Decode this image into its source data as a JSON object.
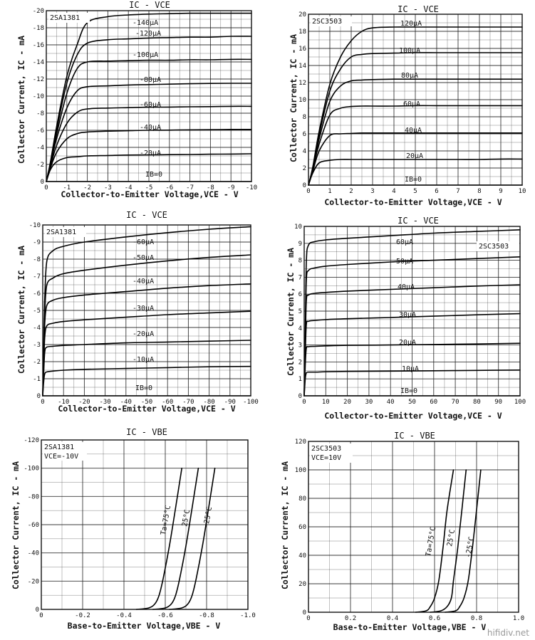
{
  "page": {
    "watermark": "hifidiv.net"
  },
  "chart_data": [
    {
      "type": "line",
      "title": "IC - VCE",
      "device": "2SA1381",
      "xlabel": "Collector-to-Emitter Voltage,VCE - V",
      "ylabel": "Collector Current, IC - mA",
      "xlim": [
        0,
        -10
      ],
      "ylim": [
        0,
        -20
      ],
      "x_ticks": [
        "0",
        "-1",
        "-2",
        "-3",
        "-4",
        "-5",
        "-6",
        "-7",
        "-8",
        "-9",
        "-10"
      ],
      "y_ticks": [
        "0",
        "-2",
        "-4",
        "-6",
        "-8",
        "-10",
        "-12",
        "-14",
        "-16",
        "-18",
        "-20"
      ],
      "grid": true,
      "x": [
        0,
        -0.2,
        -0.5,
        -1,
        -1.5,
        -2,
        -3,
        -4,
        -5,
        -6,
        -7,
        -8,
        -9,
        -10
      ],
      "series": [
        {
          "name": "IB=0",
          "values": [
            0,
            0,
            0,
            0,
            0,
            0,
            0,
            0,
            0,
            0,
            0,
            0,
            0,
            0
          ]
        },
        {
          "name": "-20μA",
          "values": [
            0,
            -1.4,
            -2.3,
            -2.8,
            -2.9,
            -3.0,
            -3.05,
            -3.1,
            -3.12,
            -3.15,
            -3.17,
            -3.2,
            -3.22,
            -3.25
          ]
        },
        {
          "name": "-40μA",
          "values": [
            0,
            -1.6,
            -3.4,
            -5.0,
            -5.6,
            -5.8,
            -5.9,
            -5.95,
            -6.0,
            -6.02,
            -6.05,
            -6.07,
            -6.1,
            -6.1
          ]
        },
        {
          "name": "-60μA",
          "values": [
            0,
            -1.8,
            -4.2,
            -6.8,
            -8.1,
            -8.5,
            -8.6,
            -8.65,
            -8.7,
            -8.72,
            -8.75,
            -8.77,
            -8.8,
            -8.8
          ]
        },
        {
          "name": "-80μA",
          "values": [
            0,
            -2.0,
            -5.0,
            -8.6,
            -10.6,
            -11.1,
            -11.2,
            -11.3,
            -11.35,
            -11.4,
            -11.45,
            -11.48,
            -11.5,
            -11.5
          ]
        },
        {
          "name": "-100μA",
          "values": [
            0,
            -2.1,
            -5.5,
            -10.3,
            -13.2,
            -14.0,
            -14.1,
            -14.15,
            -14.2,
            -14.2,
            -14.25,
            -14.25,
            -14.3,
            -14.3
          ]
        },
        {
          "name": "-120μA",
          "values": [
            0,
            -2.2,
            -6.0,
            -11.5,
            -14.8,
            -16.2,
            -16.6,
            -16.7,
            -16.8,
            -16.85,
            -16.9,
            -16.9,
            -17.0,
            -17.0
          ]
        },
        {
          "name": "-140μA",
          "values": [
            0,
            -2.3,
            -6.4,
            -12.3,
            -16.0,
            -18.6,
            -19.3,
            -19.5,
            -19.6,
            -19.65,
            -19.7,
            -19.7,
            -19.7,
            -19.7
          ]
        }
      ],
      "annotations": [
        "-140μA",
        "-120μA",
        "-100μA",
        "-80μA",
        "-60μA",
        "-40μA",
        "-20μA",
        "IB=0"
      ]
    },
    {
      "type": "line",
      "title": "IC - VCE",
      "device": "2SC3503",
      "xlabel": "Collector-to-Emitter Voltage,VCE - V",
      "ylabel": "Collector Current, IC - mA",
      "xlim": [
        0,
        10
      ],
      "ylim": [
        0,
        20
      ],
      "x_ticks": [
        "0",
        "1",
        "2",
        "3",
        "4",
        "5",
        "6",
        "7",
        "8",
        "9",
        "10"
      ],
      "y_ticks": [
        "0",
        "2",
        "4",
        "6",
        "8",
        "10",
        "12",
        "14",
        "16",
        "18",
        "20"
      ],
      "grid": true,
      "x": [
        0,
        0.2,
        0.5,
        1,
        1.5,
        2,
        2.5,
        3,
        4,
        5,
        6,
        7,
        8,
        9,
        10
      ],
      "series": [
        {
          "name": "IB=0",
          "values": [
            0,
            0,
            0,
            0,
            0,
            0,
            0,
            0,
            0,
            0,
            0,
            0,
            0,
            0,
            0
          ]
        },
        {
          "name": "20μA",
          "values": [
            0,
            1.4,
            2.6,
            2.9,
            3.0,
            3.0,
            3.0,
            3.0,
            3.0,
            3.0,
            3.0,
            3.0,
            3.0,
            3.05,
            3.05
          ]
        },
        {
          "name": "40μA",
          "values": [
            0,
            1.6,
            4.0,
            5.8,
            6.0,
            6.05,
            6.1,
            6.1,
            6.1,
            6.1,
            6.1,
            6.1,
            6.1,
            6.1,
            6.1
          ]
        },
        {
          "name": "60μA",
          "values": [
            0,
            1.8,
            4.8,
            8.2,
            9.0,
            9.2,
            9.25,
            9.25,
            9.25,
            9.3,
            9.3,
            9.3,
            9.3,
            9.3,
            9.3
          ]
        },
        {
          "name": "80μA",
          "values": [
            0,
            1.9,
            5.4,
            9.8,
            11.6,
            12.2,
            12.3,
            12.35,
            12.4,
            12.4,
            12.4,
            12.4,
            12.4,
            12.4,
            12.4
          ]
        },
        {
          "name": "100μA",
          "values": [
            0,
            2.0,
            5.9,
            11.0,
            13.6,
            15.0,
            15.3,
            15.4,
            15.45,
            15.5,
            15.5,
            15.5,
            15.5,
            15.5,
            15.5
          ]
        },
        {
          "name": "120μA",
          "values": [
            0,
            2.1,
            6.3,
            11.8,
            15.0,
            16.9,
            18.0,
            18.4,
            18.5,
            18.5,
            18.5,
            18.5,
            18.5,
            18.5,
            18.5
          ]
        }
      ],
      "annotations": [
        "120μA",
        "100μA",
        "80μA",
        "60μA",
        "40μA",
        "20μA",
        "IB=0"
      ]
    },
    {
      "type": "line",
      "title": "IC - VCE",
      "device": "2SA1381",
      "xlabel": "Collector-to-Emitter Voltage,VCE - V",
      "ylabel": "Collector Current, IC - mA",
      "xlim": [
        0,
        -100
      ],
      "ylim": [
        0,
        -10
      ],
      "x_ticks": [
        "0",
        "-10",
        "-20",
        "-30",
        "-40",
        "-50",
        "-60",
        "-70",
        "-80",
        "-90",
        "-100"
      ],
      "y_ticks": [
        "0",
        "-1",
        "-2",
        "-3",
        "-4",
        "-5",
        "-6",
        "-7",
        "-8",
        "-9",
        "-10"
      ],
      "grid": true,
      "x": [
        0,
        -0.5,
        -1,
        -2,
        -5,
        -10,
        -20,
        -40,
        -60,
        -80,
        -100
      ],
      "series": [
        {
          "name": "IB=0",
          "values": [
            0,
            0,
            0,
            0,
            0,
            0,
            0,
            0,
            0,
            0,
            0
          ]
        },
        {
          "name": "-10μA",
          "values": [
            0,
            -0.9,
            -1.3,
            -1.4,
            -1.45,
            -1.5,
            -1.55,
            -1.6,
            -1.65,
            -1.7,
            -1.72
          ]
        },
        {
          "name": "-20μA",
          "values": [
            0,
            -1.5,
            -2.6,
            -2.85,
            -2.9,
            -2.95,
            -3.0,
            -3.1,
            -3.15,
            -3.2,
            -3.25
          ]
        },
        {
          "name": "-30μA",
          "values": [
            0,
            -2.0,
            -3.5,
            -4.1,
            -4.25,
            -4.35,
            -4.45,
            -4.6,
            -4.75,
            -4.85,
            -4.95
          ]
        },
        {
          "name": "-40μA",
          "values": [
            0,
            -2.4,
            -4.3,
            -5.3,
            -5.6,
            -5.75,
            -5.9,
            -6.1,
            -6.3,
            -6.45,
            -6.55
          ]
        },
        {
          "name": "-50μA",
          "values": [
            0,
            -2.8,
            -5.0,
            -6.5,
            -6.9,
            -7.15,
            -7.35,
            -7.65,
            -7.9,
            -8.1,
            -8.25
          ]
        },
        {
          "name": "-60μA",
          "values": [
            0,
            -3.2,
            -5.8,
            -7.9,
            -8.5,
            -8.75,
            -9.0,
            -9.3,
            -9.55,
            -9.75,
            -9.9
          ]
        }
      ],
      "annotations": [
        "-60μA",
        "-50μA",
        "-40μA",
        "-30μA",
        "-20μA",
        "-10μA",
        "IB=0"
      ]
    },
    {
      "type": "line",
      "title": "IC - VCE",
      "device": "2SC3503",
      "xlabel": "Collector-to-Emitter Voltage,VCE - V",
      "ylabel": "Collector Current, IC - mA",
      "xlim": [
        0,
        100
      ],
      "ylim": [
        0,
        10
      ],
      "x_ticks": [
        "0",
        "10",
        "20",
        "30",
        "40",
        "50",
        "60",
        "70",
        "80",
        "90",
        "100"
      ],
      "y_ticks": [
        "0",
        "1",
        "2",
        "3",
        "4",
        "5",
        "6",
        "7",
        "8",
        "9",
        "10"
      ],
      "grid": true,
      "x": [
        0,
        0.5,
        1,
        2,
        5,
        10,
        20,
        40,
        60,
        80,
        100
      ],
      "series": [
        {
          "name": "IB=0",
          "values": [
            0,
            0,
            0,
            0,
            0,
            0,
            0,
            0,
            0,
            0,
            0
          ]
        },
        {
          "name": "10μA",
          "values": [
            0,
            1.0,
            1.35,
            1.4,
            1.4,
            1.42,
            1.44,
            1.46,
            1.48,
            1.5,
            1.52
          ]
        },
        {
          "name": "20μA",
          "values": [
            0,
            1.8,
            2.8,
            2.9,
            2.92,
            2.95,
            2.98,
            3.0,
            3.03,
            3.06,
            3.1
          ]
        },
        {
          "name": "30μA",
          "values": [
            0,
            2.4,
            4.2,
            4.4,
            4.45,
            4.5,
            4.55,
            4.62,
            4.7,
            4.78,
            4.85
          ]
        },
        {
          "name": "40μA",
          "values": [
            0,
            2.9,
            5.6,
            5.95,
            6.05,
            6.1,
            6.18,
            6.28,
            6.38,
            6.48,
            6.55
          ]
        },
        {
          "name": "50μA",
          "values": [
            0,
            3.3,
            6.8,
            7.4,
            7.55,
            7.65,
            7.75,
            7.9,
            8.0,
            8.1,
            8.2
          ]
        },
        {
          "name": "60μA",
          "values": [
            0,
            3.7,
            7.9,
            8.9,
            9.1,
            9.2,
            9.3,
            9.45,
            9.6,
            9.7,
            9.8
          ]
        }
      ],
      "annotations": [
        "60μA",
        "50μA",
        "40μA",
        "30μA",
        "20μA",
        "10μA",
        "IB=0"
      ]
    },
    {
      "type": "line",
      "title": "IC - VBE",
      "device": "2SA1381",
      "condition": "VCE=-10V",
      "xlabel": "Base-to-Emitter Voltage,VBE - V",
      "ylabel": "Collector Current, IC - mA",
      "xlim": [
        0,
        -1.0
      ],
      "ylim": [
        0,
        -120
      ],
      "x_ticks": [
        "0",
        "-0.2",
        "-0.4",
        "-0.6",
        "-0.8",
        "-1.0"
      ],
      "y_ticks": [
        "0",
        "-20",
        "-40",
        "-60",
        "-80",
        "-100",
        "-120"
      ],
      "grid": true,
      "series": [
        {
          "name": "Ta=75°C",
          "x": [
            -0.46,
            -0.52,
            -0.55,
            -0.57,
            -0.59,
            -0.62,
            -0.65,
            -0.68
          ],
          "values": [
            0,
            -1,
            -4,
            -10,
            -22,
            -45,
            -72,
            -100
          ]
        },
        {
          "name": "25°C",
          "x": [
            -0.54,
            -0.6,
            -0.63,
            -0.65,
            -0.67,
            -0.7,
            -0.73,
            -0.76
          ],
          "values": [
            0,
            -1,
            -4,
            -10,
            -22,
            -45,
            -72,
            -100
          ]
        },
        {
          "name": "-25°C",
          "x": [
            -0.62,
            -0.68,
            -0.71,
            -0.73,
            -0.75,
            -0.78,
            -0.81,
            -0.84
          ],
          "values": [
            0,
            -1,
            -4,
            -10,
            -22,
            -45,
            -72,
            -100
          ]
        }
      ],
      "annotations": [
        "Ta=75°C",
        "25°C",
        "-25°C"
      ]
    },
    {
      "type": "line",
      "title": "IC - VBE",
      "device": "2SC3503",
      "condition": "VCE=10V",
      "xlabel": "Base-to-Emitter Voltage,VBE - V",
      "ylabel": "Collector Current, IC - mA",
      "xlim": [
        0,
        1.0
      ],
      "ylim": [
        0,
        120
      ],
      "x_ticks": [
        "0",
        "0.2",
        "0.4",
        "0.6",
        "0.8",
        "1.0"
      ],
      "y_ticks": [
        "0",
        "20",
        "40",
        "60",
        "80",
        "100",
        "120"
      ],
      "grid": true,
      "series": [
        {
          "name": "Ta=75°C",
          "x": [
            0.51,
            0.56,
            0.58,
            0.6,
            0.62,
            0.64,
            0.66,
            0.69
          ],
          "values": [
            0,
            1,
            4,
            10,
            22,
            45,
            72,
            100
          ]
        },
        {
          "name": "25°C",
          "x": [
            0.58,
            0.63,
            0.66,
            0.68,
            0.69,
            0.71,
            0.73,
            0.75
          ],
          "values": [
            0,
            1,
            4,
            10,
            22,
            45,
            72,
            100
          ]
        },
        {
          "name": "-25°C",
          "x": [
            0.65,
            0.7,
            0.72,
            0.74,
            0.76,
            0.78,
            0.8,
            0.82
          ],
          "values": [
            0,
            1,
            4,
            10,
            22,
            45,
            72,
            100
          ]
        }
      ],
      "annotations": [
        "Ta=75°C",
        "25°C",
        "-25°C"
      ]
    }
  ]
}
